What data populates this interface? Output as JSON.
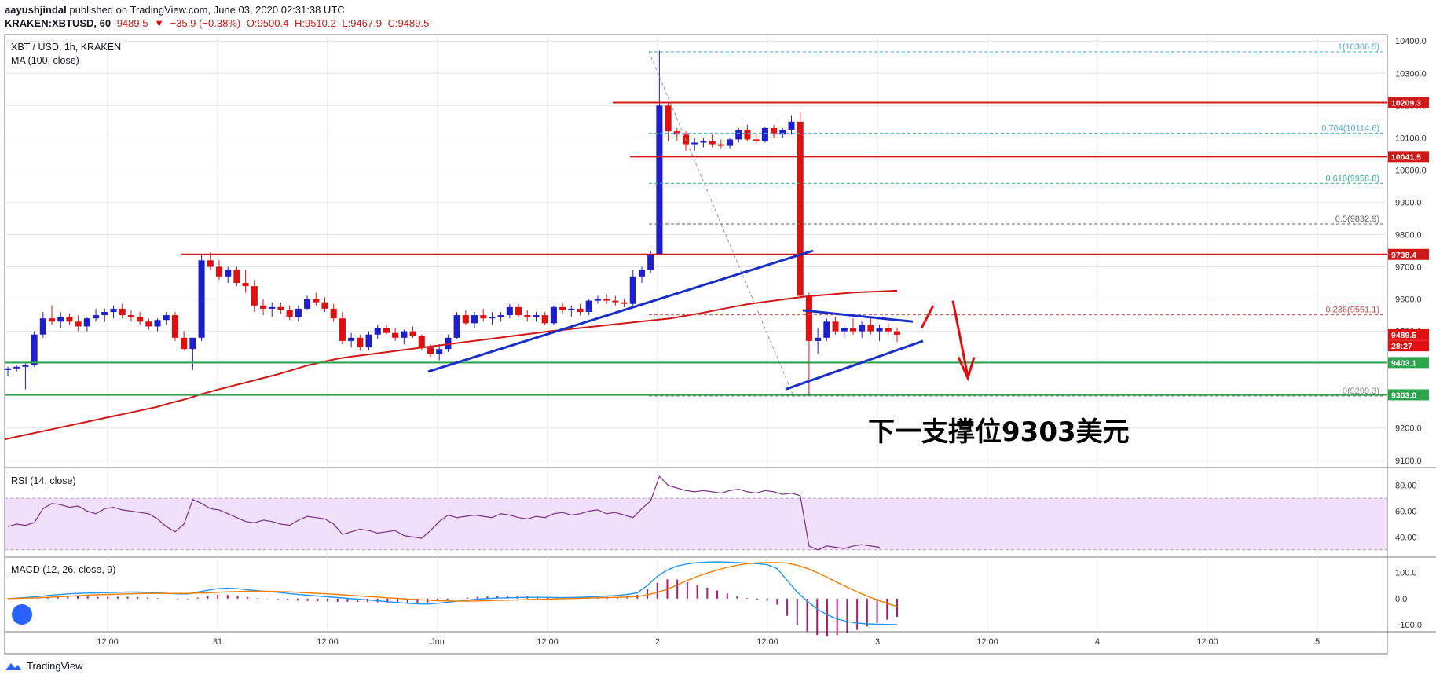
{
  "header": {
    "publisher": "aayushjindal",
    "published_text": "published on TradingView.com, June 03, 2020 02:31:38 UTC",
    "symbol_line": "KRAKEN:XBTUSD, 60",
    "last": "9489.5",
    "change": "−35.9 (−0.38%)",
    "open": "O:9500.4",
    "high": "H:9510.2",
    "low": "L:9467.9",
    "close": "C:9489.5"
  },
  "panels": {
    "main_title": "XBT / USD, 1h, KRAKEN",
    "ma_label": "MA (100, close)",
    "rsi_label": "RSI (14, close)",
    "macd_label": "MACD (12, 26, close, 9)"
  },
  "annotation": "下一支撑位9303美元",
  "footer": {
    "brand": "TradingView"
  },
  "colors": {
    "up": "#1e1ecc",
    "down": "#e01010",
    "ma": "#d01818",
    "trend": "#1a2fc8",
    "support": "#2da44e",
    "resistance": "#d01818",
    "rsi": "#7b2f86",
    "macd": "#2196f3",
    "signal": "#f57c00",
    "hist": "#b0186a"
  },
  "chart_data": {
    "type": "candlestick",
    "symbol": "XBT / USD, 1h, KRAKEN",
    "x_ticks": [
      "12:00",
      "31",
      "12:00",
      "Jun",
      "12:00",
      "2",
      "12:00",
      "3",
      "12:00",
      "4",
      "12:00",
      "5"
    ],
    "y_ticks": [
      9100,
      9200,
      9300,
      9400,
      9500,
      9600,
      9700,
      9800,
      9900,
      10000,
      10100,
      10200,
      10300,
      10400
    ],
    "ylim": [
      9080,
      10420
    ],
    "fib_levels": [
      {
        "ratio": "1",
        "value": 10366.5,
        "label": "1(10366.5)"
      },
      {
        "ratio": "0.764",
        "value": 10114.6,
        "label": "0.764(10114.6)"
      },
      {
        "ratio": "0.618",
        "value": 9958.8,
        "label": "0.618(9958.8)"
      },
      {
        "ratio": "0.5",
        "value": 9832.9,
        "label": "0.5(9832.9)"
      },
      {
        "ratio": "0.236",
        "value": 9551.1,
        "label": "0.236(9551.1)"
      },
      {
        "ratio": "0",
        "value": 9299.3,
        "label": "0(9299.3)"
      }
    ],
    "horizontal_levels": [
      {
        "value": 10209.3,
        "label": "10209.3",
        "kind": "resistance"
      },
      {
        "value": 10041.5,
        "label": "10041.5",
        "kind": "resistance"
      },
      {
        "value": 9738.4,
        "label": "9738.4",
        "kind": "resistance"
      },
      {
        "value": 9403.1,
        "label": "9403.1",
        "kind": "support"
      },
      {
        "value": 9303.0,
        "label": "9303.0",
        "kind": "support"
      }
    ],
    "price_tags": [
      {
        "value": 9489.5,
        "label": "9489.5"
      },
      {
        "value": 9450,
        "label": "28:27"
      }
    ],
    "candles": [
      [
        9380,
        9390,
        9360,
        9385
      ],
      [
        9385,
        9395,
        9375,
        9390
      ],
      [
        9390,
        9400,
        9320,
        9395
      ],
      [
        9395,
        9500,
        9390,
        9490
      ],
      [
        9490,
        9560,
        9480,
        9540
      ],
      [
        9540,
        9580,
        9520,
        9530
      ],
      [
        9530,
        9560,
        9510,
        9545
      ],
      [
        9545,
        9555,
        9520,
        9530
      ],
      [
        9530,
        9550,
        9500,
        9515
      ],
      [
        9515,
        9545,
        9500,
        9540
      ],
      [
        9540,
        9570,
        9530,
        9550
      ],
      [
        9550,
        9570,
        9530,
        9560
      ],
      [
        9560,
        9580,
        9540,
        9570
      ],
      [
        9570,
        9585,
        9540,
        9550
      ],
      [
        9550,
        9565,
        9530,
        9545
      ],
      [
        9545,
        9560,
        9520,
        9530
      ],
      [
        9530,
        9540,
        9505,
        9515
      ],
      [
        9515,
        9540,
        9500,
        9535
      ],
      [
        9535,
        9560,
        9520,
        9550
      ],
      [
        9550,
        9560,
        9470,
        9480
      ],
      [
        9480,
        9500,
        9440,
        9445
      ],
      [
        9445,
        9480,
        9380,
        9480
      ],
      [
        9480,
        9740,
        9470,
        9720
      ],
      [
        9720,
        9745,
        9690,
        9700
      ],
      [
        9700,
        9720,
        9660,
        9670
      ],
      [
        9670,
        9700,
        9650,
        9690
      ],
      [
        9690,
        9700,
        9640,
        9650
      ],
      [
        9650,
        9690,
        9620,
        9640
      ],
      [
        9640,
        9660,
        9560,
        9580
      ],
      [
        9580,
        9600,
        9550,
        9570
      ],
      [
        9570,
        9590,
        9545,
        9575
      ],
      [
        9575,
        9590,
        9555,
        9565
      ],
      [
        9565,
        9580,
        9535,
        9545
      ],
      [
        9545,
        9580,
        9530,
        9570
      ],
      [
        9570,
        9610,
        9565,
        9600
      ],
      [
        9600,
        9620,
        9580,
        9590
      ],
      [
        9590,
        9605,
        9560,
        9570
      ],
      [
        9570,
        9585,
        9530,
        9540
      ],
      [
        9540,
        9560,
        9460,
        9470
      ],
      [
        9470,
        9495,
        9450,
        9480
      ],
      [
        9480,
        9490,
        9440,
        9450
      ],
      [
        9450,
        9500,
        9440,
        9490
      ],
      [
        9490,
        9520,
        9475,
        9510
      ],
      [
        9510,
        9520,
        9490,
        9495
      ],
      [
        9495,
        9510,
        9470,
        9480
      ],
      [
        9480,
        9505,
        9460,
        9500
      ],
      [
        9500,
        9515,
        9480,
        9485
      ],
      [
        9485,
        9490,
        9440,
        9450
      ],
      [
        9450,
        9460,
        9420,
        9430
      ],
      [
        9430,
        9460,
        9410,
        9445
      ],
      [
        9445,
        9490,
        9435,
        9480
      ],
      [
        9480,
        9560,
        9475,
        9550
      ],
      [
        9550,
        9565,
        9520,
        9525
      ],
      [
        9525,
        9560,
        9510,
        9550
      ],
      [
        9550,
        9570,
        9530,
        9540
      ],
      [
        9540,
        9560,
        9520,
        9545
      ],
      [
        9545,
        9560,
        9530,
        9550
      ],
      [
        9550,
        9585,
        9540,
        9575
      ],
      [
        9575,
        9585,
        9545,
        9550
      ],
      [
        9550,
        9565,
        9530,
        9545
      ],
      [
        9545,
        9560,
        9530,
        9550
      ],
      [
        9550,
        9560,
        9520,
        9525
      ],
      [
        9525,
        9580,
        9520,
        9575
      ],
      [
        9575,
        9590,
        9555,
        9565
      ],
      [
        9565,
        9580,
        9545,
        9570
      ],
      [
        9570,
        9585,
        9550,
        9560
      ],
      [
        9560,
        9600,
        9550,
        9595
      ],
      [
        9595,
        9610,
        9585,
        9600
      ],
      [
        9600,
        9615,
        9585,
        9595
      ],
      [
        9595,
        9610,
        9580,
        9590
      ],
      [
        9590,
        9600,
        9575,
        9585
      ],
      [
        9585,
        9690,
        9580,
        9670
      ],
      [
        9670,
        9700,
        9650,
        9690
      ],
      [
        9690,
        9750,
        9680,
        9740
      ],
      [
        9740,
        10370,
        9735,
        10200
      ],
      [
        10200,
        10210,
        10090,
        10120
      ],
      [
        10120,
        10130,
        10090,
        10110
      ],
      [
        10110,
        10120,
        10060,
        10080
      ],
      [
        10080,
        10100,
        10060,
        10085
      ],
      [
        10085,
        10100,
        10070,
        10090
      ],
      [
        10090,
        10110,
        10070,
        10080
      ],
      [
        10080,
        10095,
        10065,
        10075
      ],
      [
        10075,
        10100,
        10065,
        10095
      ],
      [
        10095,
        10130,
        10085,
        10125
      ],
      [
        10125,
        10140,
        10090,
        10095
      ],
      [
        10095,
        10110,
        10080,
        10090
      ],
      [
        10090,
        10135,
        10085,
        10130
      ],
      [
        10130,
        10140,
        10100,
        10110
      ],
      [
        10110,
        10130,
        10100,
        10125
      ],
      [
        10125,
        10170,
        10110,
        10150
      ],
      [
        10150,
        10180,
        9600,
        9610
      ],
      [
        9610,
        9620,
        9300,
        9470
      ],
      [
        9470,
        9510,
        9430,
        9480
      ],
      [
        9480,
        9540,
        9470,
        9530
      ],
      [
        9530,
        9545,
        9490,
        9500
      ],
      [
        9500,
        9520,
        9480,
        9510
      ],
      [
        9510,
        9540,
        9490,
        9500
      ],
      [
        9500,
        9530,
        9480,
        9520
      ],
      [
        9520,
        9540,
        9490,
        9500
      ],
      [
        9500,
        9520,
        9470,
        9510
      ],
      [
        9510,
        9525,
        9490,
        9500
      ],
      [
        9500,
        9510,
        9467,
        9489.5
      ]
    ],
    "ma100": [
      9165,
      9175,
      9185,
      9195,
      9205,
      9215,
      9225,
      9235,
      9245,
      9255,
      9265,
      9278,
      9290,
      9305,
      9318,
      9330,
      9342,
      9354,
      9366,
      9380,
      9394,
      9405,
      9415,
      9422,
      9428,
      9434,
      9440,
      9446,
      9452,
      9458,
      9464,
      9470,
      9476,
      9482,
      9488,
      9494,
      9500,
      9505,
      9510,
      9515,
      9520,
      9525,
      9530,
      9535,
      9540,
      9548,
      9556,
      9565,
      9574,
      9583,
      9590,
      9596,
      9602,
      9608,
      9612,
      9616,
      9620,
      9622,
      9624,
      9626
    ],
    "rsi": {
      "ylim": [
        25,
        92
      ],
      "ticks": [
        40,
        60,
        80
      ],
      "band": [
        30,
        70
      ],
      "values": [
        48,
        50,
        49,
        51,
        62,
        66,
        65,
        63,
        64,
        60,
        58,
        62,
        63,
        61,
        60,
        59,
        58,
        54,
        48,
        44,
        50,
        69,
        66,
        62,
        61,
        58,
        55,
        52,
        51,
        53,
        52,
        50,
        49,
        53,
        56,
        55,
        54,
        50,
        42,
        44,
        46,
        45,
        43,
        44,
        45,
        41,
        40,
        39,
        45,
        52,
        57,
        55,
        56,
        57,
        56,
        55,
        58,
        57,
        55,
        54,
        56,
        55,
        58,
        59,
        57,
        58,
        60,
        61,
        58,
        59,
        57,
        55,
        62,
        68,
        87,
        80,
        78,
        76,
        75,
        76,
        75,
        74,
        76,
        77,
        75,
        74,
        76,
        75,
        73,
        74,
        72,
        33,
        30,
        33,
        32,
        31,
        33,
        34,
        33,
        32
      ]
    },
    "macd": {
      "ylim": [
        -115,
        150
      ],
      "ticks": [
        100,
        0,
        -100
      ],
      "macd": [
        0,
        2,
        5,
        8,
        12,
        15,
        18,
        20,
        21,
        22,
        23,
        24,
        25,
        25,
        24,
        22,
        20,
        18,
        18,
        25,
        32,
        38,
        40,
        38,
        34,
        30,
        27,
        24,
        20,
        16,
        13,
        10,
        7,
        4,
        1,
        -2,
        -5,
        -8,
        -12,
        -15,
        -18,
        -20,
        -21,
        -18,
        -14,
        -10,
        -6,
        -2,
        0,
        2,
        3,
        4,
        5,
        5,
        5,
        4,
        4,
        5,
        6,
        8,
        10,
        12,
        16,
        22,
        50,
        85,
        110,
        125,
        133,
        138,
        140,
        141,
        140,
        138,
        136,
        134,
        130,
        115,
        70,
        25,
        -10,
        -40,
        -62,
        -78,
        -88,
        -94,
        -97,
        -98,
        -99,
        -100
      ],
      "signal": [
        0,
        1,
        2,
        3,
        5,
        7,
        9,
        11,
        13,
        15,
        16,
        17,
        18,
        19,
        20,
        20,
        20,
        20,
        20,
        21,
        22,
        24,
        26,
        27,
        28,
        28,
        28,
        27,
        26,
        24,
        22,
        20,
        18,
        16,
        13,
        11,
        8,
        6,
        3,
        1,
        -2,
        -4,
        -6,
        -8,
        -9,
        -10,
        -10,
        -9,
        -8,
        -7,
        -6,
        -5,
        -4,
        -3,
        -2,
        -1,
        0,
        1,
        2,
        3,
        4,
        5,
        6,
        8,
        14,
        24,
        36,
        52,
        70,
        85,
        98,
        110,
        120,
        128,
        134,
        137,
        138,
        138,
        136,
        128,
        116,
        100,
        82,
        62,
        44,
        26,
        10,
        -5,
        -18,
        -30
      ],
      "hist": [
        0,
        1,
        3,
        5,
        7,
        8,
        9,
        9,
        8,
        7,
        7,
        7,
        7,
        6,
        4,
        2,
        0,
        -2,
        -2,
        4,
        10,
        14,
        14,
        11,
        6,
        2,
        -1,
        -3,
        -6,
        -8,
        -9,
        -10,
        -11,
        -12,
        -12,
        -13,
        -13,
        -14,
        -15,
        -16,
        -16,
        -16,
        -15,
        -10,
        -5,
        0,
        4,
        7,
        8,
        9,
        9,
        9,
        9,
        8,
        7,
        5,
        4,
        4,
        4,
        5,
        6,
        7,
        10,
        14,
        36,
        61,
        74,
        73,
        63,
        53,
        42,
        31,
        20,
        10,
        2,
        -3,
        -8,
        -23,
        -66,
        -103,
        -126,
        -140,
        -144,
        -140,
        -132,
        -120,
        -107,
        -93,
        -81,
        -70
      ]
    }
  }
}
